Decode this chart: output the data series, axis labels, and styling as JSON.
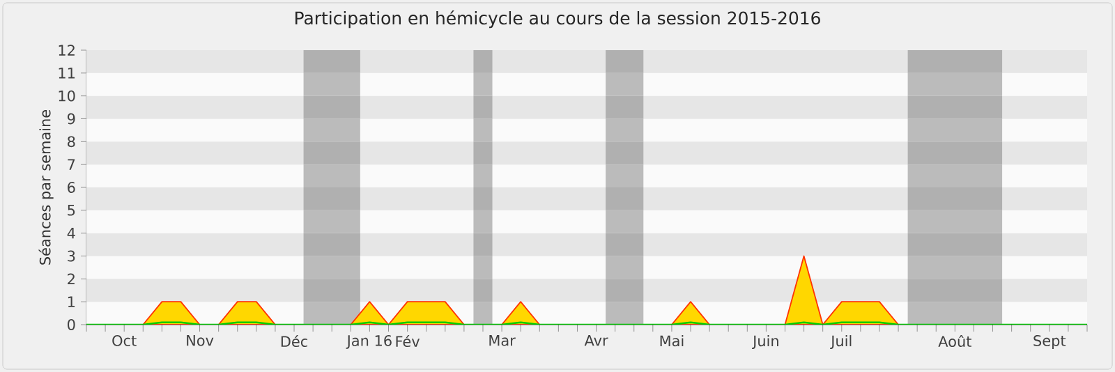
{
  "chart_data": {
    "type": "area",
    "title": "Participation en hémicycle au cours de la session 2015-2016",
    "ylabel": "Séances par semaine",
    "categories": [
      null,
      null,
      "Oct",
      null,
      null,
      null,
      "Nov",
      null,
      null,
      null,
      null,
      "Déc",
      null,
      null,
      null,
      "Jan 16",
      null,
      "Fév",
      null,
      null,
      null,
      null,
      "Mar",
      null,
      null,
      null,
      null,
      "Avr",
      null,
      null,
      null,
      "Mai",
      null,
      null,
      null,
      null,
      "Juin",
      null,
      null,
      null,
      "Juil",
      null,
      null,
      null,
      null,
      null,
      "Août",
      null,
      null,
      null,
      null,
      "Sept",
      null,
      null
    ],
    "series": [
      {
        "color": "#ffd700",
        "values": [
          0,
          0,
          0,
          0,
          1,
          1,
          0,
          0,
          1,
          1,
          0,
          0,
          0,
          0,
          0,
          1,
          0,
          1,
          1,
          1,
          0,
          0,
          0,
          1,
          0,
          0,
          0,
          0,
          0,
          0,
          0,
          0,
          1,
          0,
          0,
          0,
          0,
          0,
          3,
          0,
          1,
          1,
          1,
          0,
          0,
          0,
          0,
          0,
          0,
          0,
          0,
          0,
          0,
          0
        ]
      },
      {
        "type": "line",
        "color": "#00cc00",
        "values": [
          0,
          0,
          0,
          0,
          0.1,
          0.1,
          0,
          0,
          0.1,
          0.1,
          0,
          0,
          0,
          0,
          0,
          0.1,
          0,
          0.1,
          0.1,
          0.1,
          0,
          0,
          0,
          0.1,
          0,
          0,
          0,
          0,
          0,
          0,
          0,
          0,
          0.1,
          0,
          0,
          0,
          0,
          0,
          0.1,
          0,
          0.1,
          0.1,
          0.1,
          0,
          0,
          0,
          0,
          0,
          0,
          0,
          0,
          0,
          0,
          0
        ]
      }
    ],
    "ylim": [
      0,
      12
    ],
    "yticks": [
      0,
      1,
      2,
      3,
      4,
      5,
      6,
      7,
      8,
      9,
      10,
      11,
      12
    ]
  }
}
